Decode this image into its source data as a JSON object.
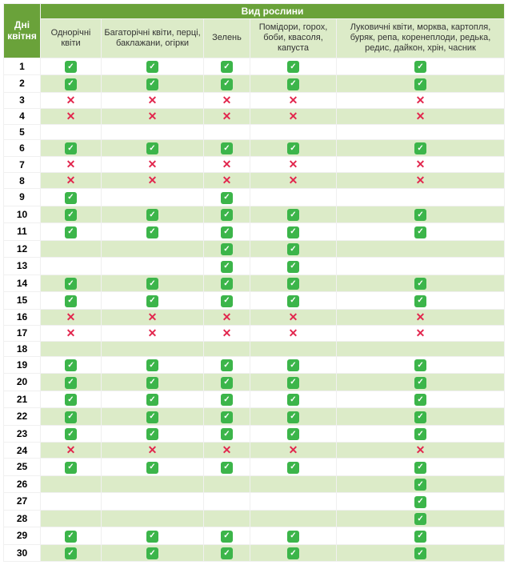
{
  "colors": {
    "header_bg": "#6aa23a",
    "subheader_bg": "#dcebc8",
    "stripe_bg": "#dcebc8",
    "check_bg": "#3cb54a",
    "cross_color": "#e2264d"
  },
  "header": {
    "day_col": "Дні квітня",
    "plant_col": "Вид рослини"
  },
  "columns": [
    "Однорічні квіти",
    "Багаторічні квіти, перці, баклажани, огірки",
    "Зелень",
    "Помідори, горох, боби, квасоля, капуста",
    "Луковичні квіти, морква, картопля, буряк, репа, коренеплоди, редька, редис, дайкон, хрін, часник"
  ],
  "rows": [
    {
      "day": 1,
      "v": [
        "y",
        "y",
        "y",
        "y",
        "y"
      ]
    },
    {
      "day": 2,
      "v": [
        "y",
        "y",
        "y",
        "y",
        "y"
      ]
    },
    {
      "day": 3,
      "v": [
        "n",
        "n",
        "n",
        "n",
        "n"
      ]
    },
    {
      "day": 4,
      "v": [
        "n",
        "n",
        "n",
        "n",
        "n"
      ]
    },
    {
      "day": 5,
      "v": [
        "",
        "",
        "",
        "",
        ""
      ]
    },
    {
      "day": 6,
      "v": [
        "y",
        "y",
        "y",
        "y",
        "y"
      ]
    },
    {
      "day": 7,
      "v": [
        "n",
        "n",
        "n",
        "n",
        "n"
      ]
    },
    {
      "day": 8,
      "v": [
        "n",
        "n",
        "n",
        "n",
        "n"
      ]
    },
    {
      "day": 9,
      "v": [
        "y",
        "",
        "y",
        "",
        ""
      ]
    },
    {
      "day": 10,
      "v": [
        "y",
        "y",
        "y",
        "y",
        "y"
      ]
    },
    {
      "day": 11,
      "v": [
        "y",
        "y",
        "y",
        "y",
        "y"
      ]
    },
    {
      "day": 12,
      "v": [
        "",
        "",
        "y",
        "y",
        ""
      ]
    },
    {
      "day": 13,
      "v": [
        "",
        "",
        "y",
        "y",
        ""
      ]
    },
    {
      "day": 14,
      "v": [
        "y",
        "y",
        "y",
        "y",
        "y"
      ]
    },
    {
      "day": 15,
      "v": [
        "y",
        "y",
        "y",
        "y",
        "y"
      ]
    },
    {
      "day": 16,
      "v": [
        "n",
        "n",
        "n",
        "n",
        "n"
      ]
    },
    {
      "day": 17,
      "v": [
        "n",
        "n",
        "n",
        "n",
        "n"
      ]
    },
    {
      "day": 18,
      "v": [
        "",
        "",
        "",
        "",
        ""
      ]
    },
    {
      "day": 19,
      "v": [
        "y",
        "y",
        "y",
        "y",
        "y"
      ]
    },
    {
      "day": 20,
      "v": [
        "y",
        "y",
        "y",
        "y",
        "y"
      ]
    },
    {
      "day": 21,
      "v": [
        "y",
        "y",
        "y",
        "y",
        "y"
      ]
    },
    {
      "day": 22,
      "v": [
        "y",
        "y",
        "y",
        "y",
        "y"
      ]
    },
    {
      "day": 23,
      "v": [
        "y",
        "y",
        "y",
        "y",
        "y"
      ]
    },
    {
      "day": 24,
      "v": [
        "n",
        "n",
        "n",
        "n",
        "n"
      ]
    },
    {
      "day": 25,
      "v": [
        "y",
        "y",
        "y",
        "y",
        "y"
      ]
    },
    {
      "day": 26,
      "v": [
        "",
        "",
        "",
        "",
        "y"
      ]
    },
    {
      "day": 27,
      "v": [
        "",
        "",
        "",
        "",
        "y"
      ]
    },
    {
      "day": 28,
      "v": [
        "",
        "",
        "",
        "",
        "y"
      ]
    },
    {
      "day": 29,
      "v": [
        "y",
        "y",
        "y",
        "y",
        "y"
      ]
    },
    {
      "day": 30,
      "v": [
        "y",
        "y",
        "y",
        "y",
        "y"
      ]
    }
  ]
}
